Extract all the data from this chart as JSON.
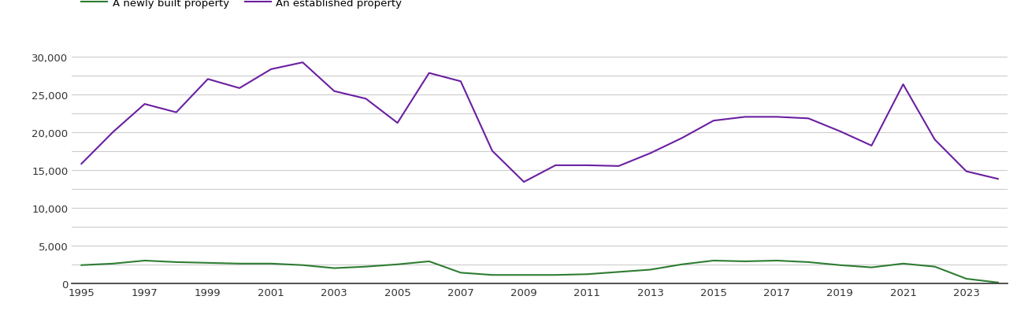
{
  "years": [
    1995,
    1996,
    1997,
    1998,
    1999,
    2000,
    2001,
    2002,
    2003,
    2004,
    2005,
    2006,
    2007,
    2008,
    2009,
    2010,
    2011,
    2012,
    2013,
    2014,
    2015,
    2016,
    2017,
    2018,
    2019,
    2020,
    2021,
    2022,
    2023,
    2024
  ],
  "new_homes": [
    2400,
    2600,
    3000,
    2800,
    2700,
    2600,
    2600,
    2400,
    2000,
    2200,
    2500,
    2900,
    1400,
    1100,
    1100,
    1100,
    1200,
    1500,
    1800,
    2500,
    3000,
    2900,
    3000,
    2800,
    2400,
    2100,
    2600,
    2200,
    600,
    100
  ],
  "established_homes": [
    15800,
    20000,
    23700,
    22600,
    27000,
    25800,
    28300,
    29200,
    25400,
    24400,
    21200,
    27800,
    26700,
    17500,
    13400,
    15600,
    15600,
    15500,
    17200,
    19200,
    21500,
    22000,
    22000,
    21800,
    20100,
    18200,
    26300,
    19000,
    14800,
    13800
  ],
  "new_color": "#2e7d32",
  "established_color": "#6a1fa0",
  "new_label": "A newly built property",
  "established_label": "An established property",
  "ylim": [
    0,
    32000
  ],
  "yticks": [
    0,
    5000,
    10000,
    15000,
    20000,
    25000,
    30000
  ],
  "minor_yticks": [
    2500,
    7500,
    12500,
    17500,
    22500,
    27500
  ],
  "background_color": "#ffffff",
  "grid_color": "#cccccc",
  "figsize": [
    13.05,
    4.1
  ],
  "dpi": 100,
  "xticks": [
    1995,
    1997,
    1999,
    2001,
    2003,
    2005,
    2007,
    2009,
    2011,
    2013,
    2015,
    2017,
    2019,
    2021,
    2023
  ]
}
